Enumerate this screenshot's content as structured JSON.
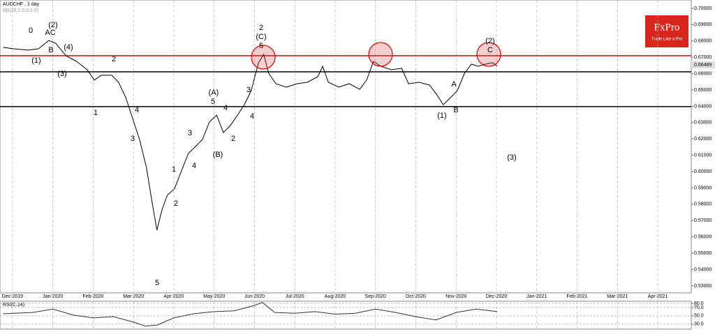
{
  "chart_data": [
    {
      "type": "line",
      "title": "AUDCHF , 1 day",
      "subtitle": "BB(20,2.0,0,2.0)",
      "brand": "FxPro",
      "slogan": "Trade Like a Pro",
      "price_label": "0.66489",
      "x": [
        -0.23,
        0.03,
        0.38,
        0.64,
        0.9,
        1.07,
        1.33,
        1.59,
        1.85,
        2.03,
        2.2,
        2.46,
        2.63,
        2.81,
        2.98,
        3.15,
        3.32,
        3.46,
        3.58,
        3.71,
        3.84,
        4.02,
        4.19,
        4.36,
        4.54,
        4.71,
        4.88,
        5.06,
        5.23,
        5.4,
        5.58,
        5.75,
        5.92,
        6.1,
        6.23,
        6.35,
        6.53,
        6.79,
        7.05,
        7.31,
        7.57,
        7.69,
        7.83,
        8.09,
        8.35,
        8.61,
        8.78,
        8.95,
        9.13,
        9.39,
        9.65,
        9.82,
        10.08,
        10.34,
        10.51,
        10.68,
        10.86,
        11.03,
        11.21,
        11.38,
        11.55,
        11.72,
        11.9,
        12.02
      ],
      "series": [
        {
          "name": "AUDCHF",
          "color": "#000000",
          "values": [
            0.6761,
            0.6752,
            0.6744,
            0.6752,
            0.6803,
            0.6786,
            0.6709,
            0.6675,
            0.6624,
            0.656,
            0.659,
            0.659,
            0.6547,
            0.6453,
            0.6325,
            0.6197,
            0.6026,
            0.5812,
            0.5641,
            0.5769,
            0.5855,
            0.5897,
            0.6004,
            0.6111,
            0.6154,
            0.6197,
            0.6303,
            0.6346,
            0.6239,
            0.6282,
            0.6346,
            0.641,
            0.6496,
            0.6667,
            0.6718,
            0.6603,
            0.6538,
            0.6517,
            0.6538,
            0.6547,
            0.6581,
            0.6645,
            0.6547,
            0.6517,
            0.6538,
            0.6504,
            0.656,
            0.6675,
            0.6645,
            0.6624,
            0.6633,
            0.6538,
            0.6547,
            0.653,
            0.6475,
            0.641,
            0.6453,
            0.6496,
            0.6603,
            0.6658,
            0.6645,
            0.6658,
            0.6667,
            0.6645
          ]
        }
      ],
      "levels": [
        {
          "value": 0.671,
          "color": "#e00000"
        },
        {
          "value": 0.6611,
          "color": "#000000"
        },
        {
          "value": 0.6398,
          "color": "#000000"
        }
      ],
      "annotations": [
        "0",
        "(2)",
        "AC",
        "B",
        "(1)",
        "(4)",
        "(3)",
        "2",
        "1",
        "4",
        "3",
        "1",
        "2",
        "5",
        "3",
        "4",
        "(B)",
        "(A)",
        "5",
        "4",
        "2",
        "3",
        "4",
        "2",
        "(C)",
        "5",
        "A",
        "B",
        "(1)",
        "(2)",
        "C",
        "(3)"
      ],
      "xlim": [
        -0.31,
        16.83
      ],
      "xticks": [
        {
          "value": 0,
          "label": "Dec-2019"
        },
        {
          "value": 1,
          "label": "Jan-2020"
        },
        {
          "value": 2,
          "label": "Feb-2020"
        },
        {
          "value": 3,
          "label": "Mar-2020"
        },
        {
          "value": 4,
          "label": "Apr-2020"
        },
        {
          "value": 5,
          "label": "May-2020"
        },
        {
          "value": 6,
          "label": "Jun-2020"
        },
        {
          "value": 7,
          "label": "Jul-2020"
        },
        {
          "value": 8,
          "label": "Aug-2020"
        },
        {
          "value": 9,
          "label": "Sep-2020"
        },
        {
          "value": 10,
          "label": "Oct-2020"
        },
        {
          "value": 11,
          "label": "Nov-2020"
        },
        {
          "value": 12,
          "label": "Dec-2020"
        },
        {
          "value": 13,
          "label": "Jan-2021"
        },
        {
          "value": 14,
          "label": "Feb-2021"
        },
        {
          "value": 15,
          "label": "Mar-2021"
        },
        {
          "value": 16,
          "label": "Apr-2021"
        }
      ],
      "ylim": [
        0.5257,
        0.7051
      ],
      "yticks": [
        {
          "value": 0.53,
          "label": "0.53000"
        },
        {
          "value": 0.54,
          "label": "0.54000"
        },
        {
          "value": 0.55,
          "label": "0.55000"
        },
        {
          "value": 0.56,
          "label": "0.56000"
        },
        {
          "value": 0.57,
          "label": "0.57000"
        },
        {
          "value": 0.58,
          "label": "0.58000"
        },
        {
          "value": 0.59,
          "label": "0.59000"
        },
        {
          "value": 0.6,
          "label": "0.60000"
        },
        {
          "value": 0.61,
          "label": "0.61000"
        },
        {
          "value": 0.62,
          "label": "0.62000"
        },
        {
          "value": 0.63,
          "label": "0.63000"
        },
        {
          "value": 0.64,
          "label": "0.64000"
        },
        {
          "value": 0.65,
          "label": "0.65000"
        },
        {
          "value": 0.66,
          "label": "0.66000"
        },
        {
          "value": 0.67,
          "label": "0.67000"
        },
        {
          "value": 0.68,
          "label": "0.68000"
        },
        {
          "value": 0.69,
          "label": "0.69000"
        },
        {
          "value": 0.7,
          "label": "0.70000"
        }
      ],
      "grid": true
    },
    {
      "type": "line",
      "title": "RSI(C,14)",
      "x": [
        -0.23,
        0.5,
        1.0,
        1.5,
        2.0,
        2.5,
        3.0,
        3.3,
        3.6,
        4.0,
        4.5,
        5.0,
        5.5,
        6.0,
        6.2,
        6.5,
        7.0,
        7.5,
        8.0,
        8.5,
        9.0,
        9.5,
        10.0,
        10.5,
        11.0,
        11.5,
        12.02
      ],
      "series": [
        {
          "name": "RSI",
          "color": "#333333",
          "values": [
            55,
            58,
            66,
            52,
            45,
            48,
            35,
            25,
            28,
            45,
            55,
            60,
            62,
            75,
            82,
            58,
            56,
            60,
            54,
            56,
            66,
            58,
            48,
            40,
            58,
            66,
            60
          ]
        }
      ],
      "xlim": [
        -0.31,
        16.83
      ],
      "ylim": [
        18,
        85
      ],
      "yticks": [
        {
          "value": 80,
          "label": "80.0"
        },
        {
          "value": 70,
          "label": "70.0"
        },
        {
          "value": 50,
          "label": "50.0"
        },
        {
          "value": 30,
          "label": "30.0"
        }
      ]
    }
  ]
}
